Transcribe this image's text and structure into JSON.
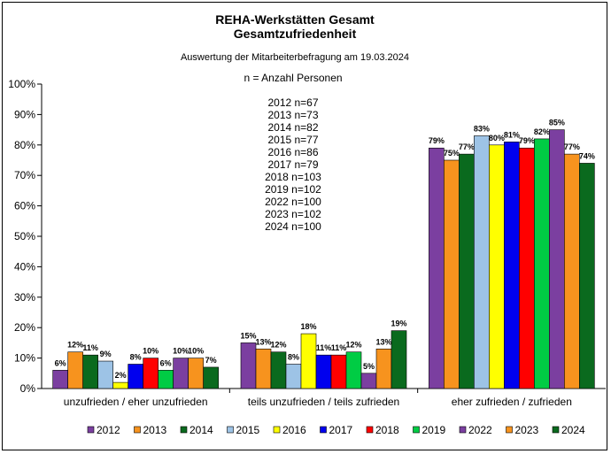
{
  "chart_data": {
    "type": "bar",
    "title": "REHA-Werkstätten Gesamt",
    "subtitle": "Gesamtzufriedenheit",
    "caption": "Auswertung der Mitarbeiterbefragung am 19.03.2024",
    "annotation_title": "n = Anzahl Personen",
    "annotations": [
      "2012 n=67",
      "2013 n=73",
      "2014 n=82",
      "2015 n=77",
      "2016 n=86",
      "2017 n=79",
      "2018 n=103",
      "2019 n=102",
      "2022 n=100",
      "2023 n=102",
      "2024 n=100"
    ],
    "categories": [
      "unzufrieden / eher unzufrieden",
      "teils unzufrieden / teils zufrieden",
      "eher zufrieden / zufrieden"
    ],
    "yticks": [
      "0%",
      "10%",
      "20%",
      "30%",
      "40%",
      "50%",
      "60%",
      "70%",
      "80%",
      "90%",
      "100%"
    ],
    "ylim": [
      0,
      100
    ],
    "grid": false,
    "legend_position": "bottom",
    "series": [
      {
        "name": "2012",
        "color": "#7B3FA0",
        "values": [
          6,
          15,
          79
        ],
        "labels": [
          "6%",
          "15%",
          "79%"
        ]
      },
      {
        "name": "2013",
        "color": "#F7931E",
        "values": [
          12,
          13,
          75
        ],
        "labels": [
          "12%",
          "13%",
          "75%"
        ]
      },
      {
        "name": "2014",
        "color": "#0A6A1E",
        "values": [
          11,
          12,
          77
        ],
        "labels": [
          "11%",
          "12%",
          "77%"
        ]
      },
      {
        "name": "2015",
        "color": "#9DC3E6",
        "values": [
          9,
          8,
          83
        ],
        "labels": [
          "9%",
          "8%",
          "83%"
        ]
      },
      {
        "name": "2016",
        "color": "#FFFF00",
        "values": [
          2,
          18,
          80
        ],
        "labels": [
          "2%",
          "18%",
          "80%"
        ]
      },
      {
        "name": "2017",
        "color": "#0000EE",
        "values": [
          8,
          11,
          81
        ],
        "labels": [
          "8%",
          "11%",
          "81%"
        ]
      },
      {
        "name": "2018",
        "color": "#FF0000",
        "values": [
          10,
          11,
          79
        ],
        "labels": [
          "10%",
          "11%",
          "79%"
        ]
      },
      {
        "name": "2019",
        "color": "#00CC44",
        "values": [
          6,
          12,
          82
        ],
        "labels": [
          "6%",
          "12%",
          "82%"
        ]
      },
      {
        "name": "2022",
        "color": "#7B3FA0",
        "values": [
          10,
          5,
          85
        ],
        "labels": [
          "10%",
          "5%",
          "85%"
        ]
      },
      {
        "name": "2023",
        "color": "#F7931E",
        "values": [
          10,
          13,
          77
        ],
        "labels": [
          "10%",
          "13%",
          "77%"
        ]
      },
      {
        "name": "2024",
        "color": "#0A6A1E",
        "values": [
          7,
          19,
          74
        ],
        "labels": [
          "7%",
          "19%",
          "74%"
        ]
      }
    ]
  }
}
